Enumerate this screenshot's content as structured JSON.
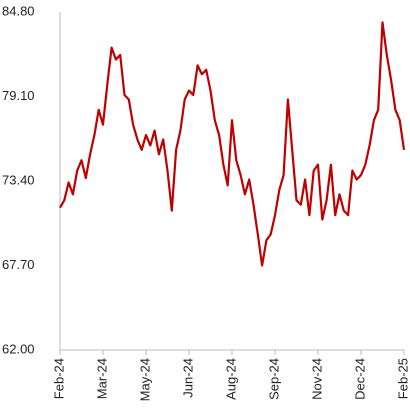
{
  "chart_data": {
    "type": "line",
    "categories": [
      "Feb-24",
      null,
      null,
      null,
      null,
      null,
      null,
      null,
      null,
      null,
      "Mar-24",
      null,
      null,
      null,
      null,
      null,
      null,
      null,
      null,
      null,
      "May-24",
      null,
      null,
      null,
      null,
      null,
      null,
      null,
      null,
      null,
      "Jun-24",
      null,
      null,
      null,
      null,
      null,
      null,
      null,
      null,
      null,
      "Aug-24",
      null,
      null,
      null,
      null,
      null,
      null,
      null,
      null,
      null,
      "Sep-24",
      null,
      null,
      null,
      null,
      null,
      null,
      null,
      null,
      null,
      "Nov-24",
      null,
      null,
      null,
      null,
      null,
      null,
      null,
      null,
      null,
      "Dec-24",
      null,
      null,
      null,
      null,
      null,
      null,
      null,
      null,
      null,
      "Feb-25"
    ],
    "values": [
      71.6,
      72.1,
      73.3,
      72.5,
      74.1,
      74.8,
      73.6,
      75.2,
      76.5,
      78.2,
      77.2,
      79.9,
      82.4,
      81.6,
      81.9,
      79.2,
      78.9,
      77.2,
      76.2,
      75.5,
      76.5,
      75.8,
      76.8,
      75.2,
      76.2,
      74.1,
      71.4,
      75.5,
      76.8,
      78.9,
      79.5,
      79.2,
      81.2,
      80.6,
      80.9,
      79.5,
      77.5,
      76.5,
      74.5,
      73.1,
      77.5,
      74.8,
      73.8,
      72.5,
      73.5,
      71.8,
      69.8,
      67.7,
      69.4,
      69.8,
      71.1,
      72.8,
      73.8,
      78.9,
      75.5,
      72.1,
      71.8,
      73.5,
      71.1,
      74.1,
      74.5,
      70.8,
      72.1,
      74.5,
      71.1,
      72.5,
      71.4,
      71.1,
      74.1,
      73.5,
      73.8,
      74.5,
      75.8,
      77.5,
      78.2,
      84.1,
      81.9,
      80.2,
      78.2,
      77.5,
      75.5
    ],
    "color": "#c00000",
    "ylim": [
      62,
      84.8
    ],
    "yticks": [
      {
        "value": 62,
        "label": "62.00"
      },
      {
        "value": 67.7,
        "label": "67.70"
      },
      {
        "value": 73.4,
        "label": "73.40"
      },
      {
        "value": 79.1,
        "label": "79.10"
      },
      {
        "value": 84.8,
        "label": "84.80"
      }
    ],
    "grid": false
  }
}
